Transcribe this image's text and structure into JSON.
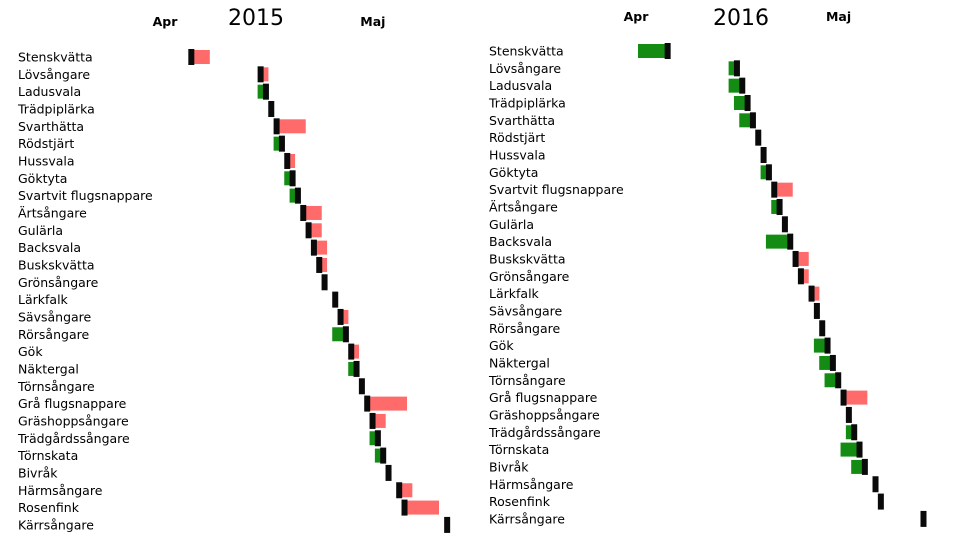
{
  "chart_data": [
    {
      "type": "bar",
      "title": "2015",
      "xticks": [
        {
          "label": "Apr",
          "date": "04-01"
        },
        {
          "label": "Maj",
          "date": "05-10"
        }
      ],
      "colors": {
        "marker": "#0a0a0a",
        "later": "#ff6b6b",
        "earlier": "#148c14"
      },
      "grid": false,
      "categories": [
        "Stenskvätta",
        "Lövsångare",
        "Ladusvala",
        "Trädpiplärka",
        "Svarthätta",
        "Rödstjärt",
        "Hussvala",
        "Göktyta",
        "Svartvit flugsnappare",
        "Ärtsångare",
        "Gulärla",
        "Backsvala",
        "Buskskvätta",
        "Grönsångare",
        "Lärkfalk",
        "Sävsångare",
        "Rörsångare",
        "Gök",
        "Näktergal",
        "Törnsångare",
        "Grå flugsnappare",
        "Gräshoppsångare",
        "Trädgårdssångare",
        "Törnskata",
        "Bivråk",
        "Härmsångare",
        "Rosenfink",
        "Kärrsångare"
      ],
      "marker_date": [
        "04-05",
        "04-18",
        "04-19",
        "04-20",
        "04-21",
        "04-22",
        "04-23",
        "04-24",
        "04-25",
        "04-26",
        "04-27",
        "04-28",
        "04-29",
        "04-30",
        "05-02",
        "05-03",
        "05-04",
        "05-05",
        "05-06",
        "05-07",
        "05-08",
        "05-09",
        "05-10",
        "05-11",
        "05-12",
        "05-14",
        "05-15",
        "05-23"
      ],
      "bar_end_date": [
        "04-08",
        "04-19",
        "04-18",
        "04-20",
        "04-26",
        "04-21",
        "04-24",
        "04-23",
        "04-24",
        "04-29",
        "04-29",
        "04-30",
        "04-30",
        "04-30",
        "05-02",
        "05-04",
        "05-02",
        "05-06",
        "05-05",
        "05-07",
        "05-15",
        "05-11",
        "05-09",
        "05-10",
        "05-12",
        "05-16",
        "05-21",
        "05-23"
      ]
    },
    {
      "type": "bar",
      "title": "2016",
      "xticks": [
        {
          "label": "Apr",
          "date": "04-01"
        },
        {
          "label": "Maj",
          "date": "05-09"
        }
      ],
      "colors": {
        "marker": "#0a0a0a",
        "later": "#ff6b6b",
        "earlier": "#148c14"
      },
      "grid": false,
      "categories": [
        "Stenskvätta",
        "Lövsångare",
        "Ladusvala",
        "Trädpiplärka",
        "Svarthätta",
        "Rödstjärt",
        "Hussvala",
        "Göktyta",
        "Svartvit flugsnappare",
        "Ärtsångare",
        "Gulärla",
        "Backsvala",
        "Buskskvätta",
        "Grönsångare",
        "Lärkfalk",
        "Sävsångare",
        "Rörsångare",
        "Gök",
        "Näktergal",
        "Törnsångare",
        "Grå flugsnappare",
        "Gräshoppsångare",
        "Trädgårdssångare",
        "Törnskata",
        "Bivråk",
        "Härmsångare",
        "Rosenfink",
        "Kärrsångare"
      ],
      "marker_date": [
        "04-06",
        "04-19",
        "04-20",
        "04-21",
        "04-22",
        "04-23",
        "04-24",
        "04-25",
        "04-26",
        "04-27",
        "04-28",
        "04-29",
        "04-30",
        "05-01",
        "05-03",
        "05-04",
        "05-05",
        "05-06",
        "05-07",
        "05-08",
        "05-09",
        "05-10",
        "05-11",
        "05-12",
        "05-13",
        "05-15",
        "05-16",
        "05-24"
      ],
      "bar_end_date": [
        "04-01",
        "04-18",
        "04-18",
        "04-19",
        "04-20",
        "04-23",
        "04-24",
        "04-24",
        "04-29",
        "04-26",
        "04-28",
        "04-25",
        "05-02",
        "05-02",
        "05-04",
        "05-04",
        "05-05",
        "05-04",
        "05-05",
        "05-06",
        "05-13",
        "05-10",
        "05-10",
        "05-09",
        "05-11",
        "05-15",
        "05-16",
        "05-24"
      ]
    }
  ]
}
